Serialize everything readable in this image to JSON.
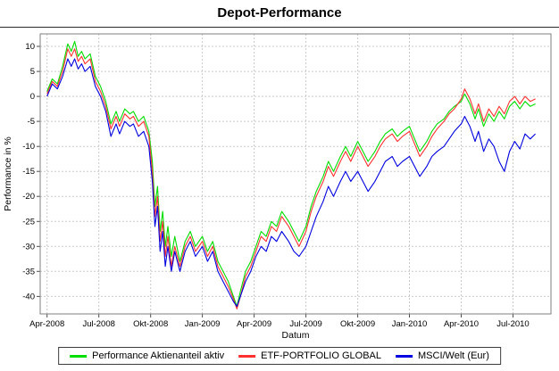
{
  "chart_data": {
    "type": "line",
    "title": "Depot-Performance",
    "xlabel": "Datum",
    "ylabel": "Performance in %",
    "x_unit": "months since Apr-2008",
    "xlim": [
      -0.4,
      29.2
    ],
    "ylim": [
      -43.5,
      12.5
    ],
    "grid": true,
    "legend_position": "bottom",
    "y_ticks": [
      10,
      5,
      0,
      -5,
      -10,
      -15,
      -20,
      -25,
      -30,
      -35,
      -40
    ],
    "x_ticks": [
      {
        "pos": 0,
        "label": "Apr-2008"
      },
      {
        "pos": 3,
        "label": "Jul-2008"
      },
      {
        "pos": 6,
        "label": "Okt-2008"
      },
      {
        "pos": 9,
        "label": "Jan-2009"
      },
      {
        "pos": 12,
        "label": "Apr-2009"
      },
      {
        "pos": 15,
        "label": "Jul-2009"
      },
      {
        "pos": 18,
        "label": "Okt-2009"
      },
      {
        "pos": 21,
        "label": "Jan-2010"
      },
      {
        "pos": 24,
        "label": "Apr-2010"
      },
      {
        "pos": 27,
        "label": "Jul-2010"
      }
    ],
    "x": [
      0,
      0.3,
      0.6,
      0.9,
      1.2,
      1.4,
      1.6,
      1.8,
      2.0,
      2.2,
      2.5,
      2.8,
      3.1,
      3.4,
      3.7,
      4.0,
      4.2,
      4.5,
      4.8,
      5.0,
      5.3,
      5.6,
      5.9,
      6.1,
      6.25,
      6.4,
      6.55,
      6.7,
      6.85,
      7.0,
      7.2,
      7.4,
      7.7,
      8.0,
      8.3,
      8.6,
      9.0,
      9.3,
      9.6,
      9.9,
      10.2,
      10.5,
      10.8,
      11.0,
      11.2,
      11.5,
      11.8,
      12.1,
      12.4,
      12.7,
      13.0,
      13.3,
      13.6,
      14.0,
      14.3,
      14.6,
      15.0,
      15.3,
      15.6,
      16.0,
      16.3,
      16.6,
      17.0,
      17.3,
      17.6,
      18.0,
      18.3,
      18.6,
      19.0,
      19.3,
      19.6,
      20.0,
      20.3,
      20.6,
      21.0,
      21.3,
      21.6,
      22.0,
      22.3,
      22.6,
      23.0,
      23.3,
      23.6,
      24.0,
      24.2,
      24.5,
      24.8,
      25.0,
      25.3,
      25.6,
      25.9,
      26.2,
      26.5,
      26.8,
      27.1,
      27.4,
      27.7,
      28.0,
      28.3
    ],
    "series": [
      {
        "name": "Performance Aktienanteil aktiv",
        "color": "#00dd00",
        "values": [
          1,
          3.5,
          2.5,
          6,
          10.5,
          9,
          11,
          8,
          9,
          7.5,
          8.5,
          4,
          2,
          -1,
          -5.5,
          -3,
          -5,
          -2.5,
          -3.5,
          -3,
          -5,
          -4,
          -7,
          -13,
          -22,
          -18,
          -27,
          -23,
          -30,
          -26,
          -32,
          -28,
          -33,
          -29,
          -27,
          -30,
          -28,
          -31,
          -29,
          -33,
          -35,
          -37,
          -40,
          -42,
          -39,
          -35,
          -33,
          -30,
          -27,
          -28,
          -25,
          -26,
          -23,
          -25,
          -27,
          -29,
          -26,
          -22,
          -19,
          -16,
          -13,
          -15,
          -12,
          -10,
          -12,
          -9,
          -11,
          -13,
          -11,
          -9,
          -7.5,
          -6.5,
          -8,
          -7,
          -6,
          -8.5,
          -11,
          -9,
          -7,
          -5.5,
          -4.5,
          -3,
          -2,
          -1,
          0.5,
          -1.5,
          -4.5,
          -2.5,
          -6,
          -3.5,
          -5,
          -3,
          -4.5,
          -2,
          -1,
          -2.5,
          -1,
          -2,
          -1.5
        ]
      },
      {
        "name": "ETF-PORTFOLIO GLOBAL",
        "color": "#ff3030",
        "values": [
          0.5,
          3,
          2,
          5,
          9.5,
          8,
          9.5,
          7,
          8,
          6.5,
          7.5,
          3,
          1,
          -2,
          -6.5,
          -4,
          -6,
          -3.5,
          -4.5,
          -4,
          -6,
          -5,
          -8,
          -15,
          -24,
          -20,
          -29,
          -25,
          -32,
          -28,
          -34,
          -30,
          -34,
          -30,
          -28,
          -31,
          -29,
          -32,
          -30,
          -34,
          -36,
          -38,
          -40.5,
          -42.5,
          -40,
          -36,
          -34,
          -31,
          -28,
          -29,
          -26,
          -27,
          -24,
          -26,
          -28,
          -30,
          -27,
          -23,
          -20,
          -17,
          -14,
          -16,
          -13,
          -11,
          -13,
          -10,
          -12,
          -14,
          -12,
          -10,
          -8.5,
          -7.5,
          -9,
          -8,
          -7,
          -9.5,
          -12,
          -10,
          -8,
          -6.5,
          -5,
          -3.5,
          -2.5,
          -0.5,
          1.5,
          -0.5,
          -3.5,
          -1.5,
          -5,
          -2.5,
          -4,
          -2,
          -3.5,
          -1,
          0,
          -1.5,
          0,
          -1,
          -0.5
        ]
      },
      {
        "name": "MSCI/Welt (Eur)",
        "color": "#0000e0",
        "values": [
          0,
          2.5,
          1.5,
          4,
          7.5,
          6,
          7.5,
          5.5,
          6.5,
          5,
          6,
          2,
          0,
          -3,
          -8,
          -5.5,
          -7.5,
          -5,
          -6,
          -5.5,
          -8,
          -7,
          -10,
          -17,
          -26,
          -22,
          -31,
          -27,
          -34,
          -30,
          -35,
          -31,
          -35,
          -31,
          -29,
          -32,
          -30,
          -33,
          -31,
          -35,
          -37,
          -39,
          -41,
          -42,
          -40,
          -37,
          -35,
          -32,
          -30,
          -31,
          -28,
          -29,
          -27,
          -29,
          -31,
          -32,
          -30,
          -27,
          -24,
          -21,
          -18,
          -20,
          -17,
          -15,
          -17,
          -15,
          -17,
          -19,
          -17,
          -15,
          -13,
          -12,
          -14,
          -13,
          -12,
          -14,
          -16,
          -14,
          -12,
          -11,
          -10,
          -8.5,
          -7,
          -5.5,
          -4,
          -6,
          -9,
          -7,
          -11,
          -8.5,
          -10,
          -13,
          -15,
          -11,
          -9,
          -10.5,
          -7.5,
          -8.5,
          -7.5
        ]
      }
    ]
  }
}
